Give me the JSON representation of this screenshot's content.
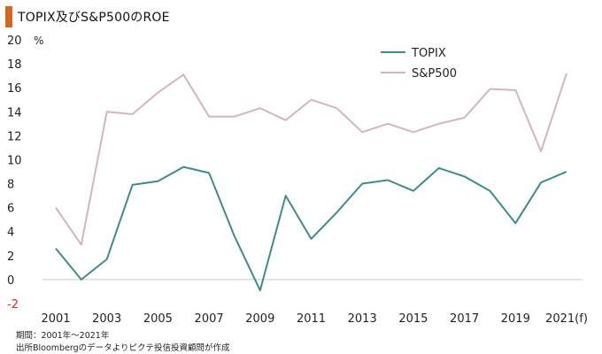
{
  "title": "TOPIX及びS&P500のROE",
  "footnotes": [
    "期間：2001年～2021年",
    "出所Bloombergのデータよりピクテ投信投資顧問が作成"
  ],
  "colors": {
    "accent": "#d2691e",
    "topix": "#3f8a8c",
    "sp500": "#d3b4bf",
    "zero_line": "#cccccc",
    "negative_label": "#c8302c"
  },
  "chart_data": {
    "type": "line",
    "title": "TOPIX及びS&P500のROE",
    "xlabel": "",
    "ylabel": "",
    "y_unit": "%",
    "ylim": [
      -2,
      20
    ],
    "yticks": [
      -2,
      0,
      2,
      4,
      6,
      8,
      10,
      12,
      14,
      16,
      18,
      20
    ],
    "x": [
      2001,
      2002,
      2003,
      2004,
      2005,
      2006,
      2007,
      2008,
      2009,
      2010,
      2011,
      2012,
      2013,
      2014,
      2015,
      2016,
      2017,
      2018,
      2019,
      2020,
      2021
    ],
    "x_tick_labels": [
      "2001",
      "2003",
      "2005",
      "2007",
      "2009",
      "2011",
      "2013",
      "2015",
      "2017",
      "2019",
      "2021(f)"
    ],
    "x_tick_years": [
      2001,
      2003,
      2005,
      2007,
      2009,
      2011,
      2013,
      2015,
      2017,
      2019,
      2021
    ],
    "grid": false,
    "legend_position": "top-right",
    "series": [
      {
        "name": "TOPIX",
        "color": "#3f8a8c",
        "values": [
          2.6,
          0.0,
          1.7,
          7.9,
          8.2,
          9.4,
          8.9,
          3.6,
          -0.9,
          7.0,
          3.4,
          5.6,
          8.0,
          8.3,
          7.4,
          9.3,
          8.6,
          7.4,
          4.7,
          8.1,
          9.0
        ]
      },
      {
        "name": "S&P500",
        "color": "#d3b4bf",
        "values": [
          6.0,
          2.9,
          14.0,
          13.8,
          15.6,
          17.1,
          13.6,
          13.6,
          14.3,
          13.3,
          15.0,
          14.3,
          12.3,
          13.0,
          12.3,
          13.0,
          13.5,
          15.9,
          15.8,
          10.7,
          17.2
        ]
      }
    ]
  }
}
